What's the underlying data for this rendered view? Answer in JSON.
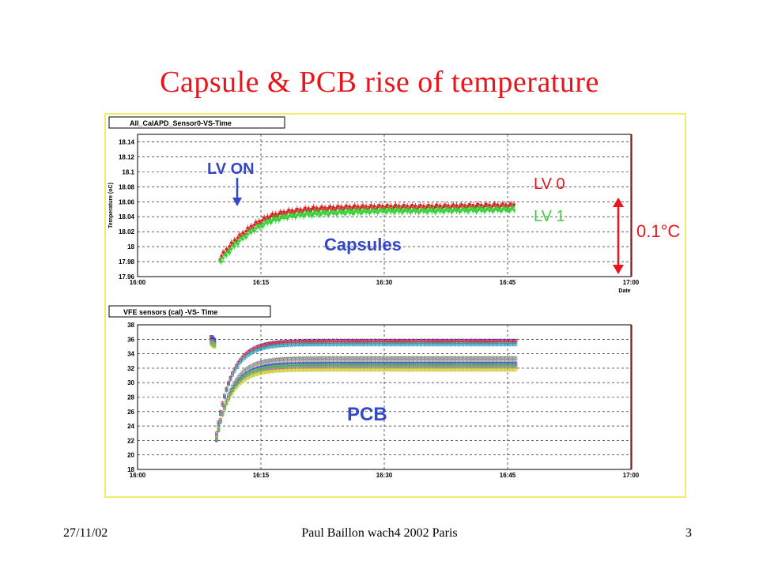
{
  "slide": {
    "title": "Capsule & PCB rise of temperature",
    "footer_date": "27/11/02",
    "footer_center": "Paul Baillon   wach4 2002 Paris",
    "footer_page": "3"
  },
  "colors": {
    "title": "#e8161c",
    "panel_border": "#f2ee6a",
    "annotation_blue": "#3347c9",
    "annotation_red": "#e8161c",
    "annotation_green": "#3ed03e"
  },
  "chart_data": [
    {
      "type": "scatter",
      "frame_title": "All_CalAPD_Sensor0-VS-Time",
      "ylabel": "Temperature (oC)",
      "xlabel": "Date",
      "x_ticks": [
        "16:00",
        "16:15",
        "16:30",
        "16:45",
        "17:00"
      ],
      "y_ticks": [
        "17.96",
        "17.98",
        "18",
        "18.02",
        "18.04",
        "18.06",
        "18.08",
        "18.1",
        "18.12",
        "18.14"
      ],
      "xlim": [
        "16:00",
        "17:00"
      ],
      "ylim": [
        17.96,
        18.15
      ],
      "grid": true,
      "annotations": {
        "lv_on": "LV ON",
        "capsules": "Capsules",
        "lv0": "LV 0",
        "lv1": "LV 1",
        "delta": "0.1°C"
      },
      "series": [
        {
          "name": "LV 0",
          "color": "#d42020",
          "times": [
            "16:10",
            "16:11",
            "16:12",
            "16:14",
            "16:16",
            "16:18",
            "16:21",
            "16:25",
            "16:30",
            "16:35",
            "16:40",
            "16:46"
          ],
          "values": [
            17.985,
            17.998,
            18.01,
            18.028,
            18.04,
            18.046,
            18.05,
            18.052,
            18.053,
            18.053,
            18.054,
            18.055
          ]
        },
        {
          "name": "LV 1",
          "color": "#2fcf2f",
          "times": [
            "16:10",
            "16:11",
            "16:12",
            "16:14",
            "16:16",
            "16:18",
            "16:21",
            "16:25",
            "16:30",
            "16:35",
            "16:40",
            "16:46"
          ],
          "values": [
            17.98,
            17.992,
            18.004,
            18.022,
            18.034,
            18.04,
            18.044,
            18.046,
            18.048,
            18.048,
            18.049,
            18.05
          ]
        }
      ]
    },
    {
      "type": "scatter",
      "frame_title": "VFE sensors (cal) -VS- Time",
      "xlabel": "",
      "ylabel": "",
      "x_ticks": [
        "16:00",
        "16:15",
        "16:30",
        "16:45",
        "17:00"
      ],
      "y_ticks": [
        "18",
        "20",
        "22",
        "24",
        "26",
        "28",
        "30",
        "32",
        "34",
        "36",
        "38"
      ],
      "xlim": [
        "16:00",
        "17:00"
      ],
      "ylim": [
        18,
        38
      ],
      "grid": true,
      "annotations": {
        "pcb": "PCB"
      },
      "series": [
        {
          "color": "#7b2d8e",
          "start": 36.2,
          "low": 22.5,
          "plateau": 35.8
        },
        {
          "color": "#e03030",
          "start": 36.0,
          "low": 23.0,
          "plateau": 35.6
        },
        {
          "color": "#20a0c0",
          "start": 35.8,
          "low": 22.8,
          "plateau": 35.3
        },
        {
          "color": "#808080",
          "start": 35.9,
          "low": 22.0,
          "plateau": 33.4
        },
        {
          "color": "#a0a0a0",
          "start": 35.5,
          "low": 22.3,
          "plateau": 33.0
        },
        {
          "color": "#3434d0",
          "start": 36.3,
          "low": 22.1,
          "plateau": 32.6
        },
        {
          "color": "#d040d0",
          "start": 35.6,
          "low": 22.6,
          "plateau": 32.2
        },
        {
          "color": "#c8c820",
          "start": 35.4,
          "low": 22.4,
          "plateau": 31.8
        },
        {
          "color": "#50c050",
          "start": 35.7,
          "low": 22.2,
          "plateau": 32.4
        }
      ]
    }
  ]
}
